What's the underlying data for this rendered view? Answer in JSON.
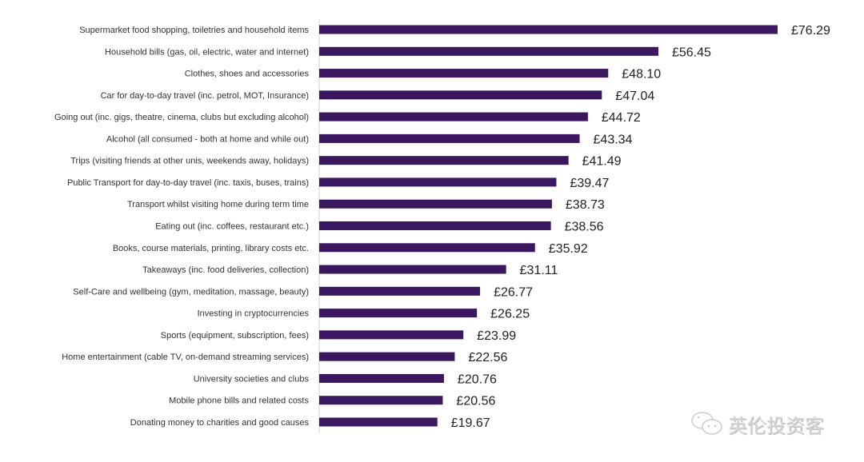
{
  "chart_data": {
    "type": "bar",
    "orientation": "horizontal",
    "categories": [
      "Supermarket food shopping, toiletries and household items",
      "Household bills (gas, oil, electric, water and internet)",
      "Clothes, shoes and accessories",
      "Car for day-to-day travel (inc. petrol, MOT, Insurance)",
      "Going out (inc. gigs, theatre, cinema, clubs but excluding alcohol)",
      "Alcohol (all consumed - both at home and while out)",
      "Trips (visiting friends at other unis, weekends away, holidays)",
      "Public Transport for day-to-day travel (inc. taxis, buses, trains)",
      "Transport whilst visiting home during term time",
      "Eating out (inc. coffees, restaurant etc.)",
      "Books, course materials, printing, library costs etc.",
      "Takeaways (inc. food deliveries, collection)",
      "Self-Care and wellbeing (gym, meditation, massage, beauty)",
      "Investing in cryptocurrencies",
      "Sports (equipment, subscription, fees)",
      "Home entertainment (cable TV, on-demand streaming services)",
      "University societies and clubs",
      "Mobile phone bills and related costs",
      "Donating money to charities and good causes"
    ],
    "values": [
      76.29,
      56.45,
      48.1,
      47.04,
      44.72,
      43.34,
      41.49,
      39.47,
      38.73,
      38.56,
      35.92,
      31.11,
      26.77,
      26.25,
      23.99,
      22.56,
      20.76,
      20.56,
      19.67
    ],
    "value_labels": [
      "£76.29",
      "£56.45",
      "£48.10",
      "£47.04",
      "£44.72",
      "£43.34",
      "£41.49",
      "£39.47",
      "£38.73",
      "£38.56",
      "£35.92",
      "£31.11",
      "£26.77",
      "£26.25",
      "£23.99",
      "£22.56",
      "£20.76",
      "£20.56",
      "£19.67"
    ],
    "xlim": [
      0,
      76.29
    ],
    "grid": false,
    "bar_color": "#3b1760",
    "title": "",
    "xlabel": "",
    "ylabel": ""
  },
  "watermark": "英伦投资客"
}
